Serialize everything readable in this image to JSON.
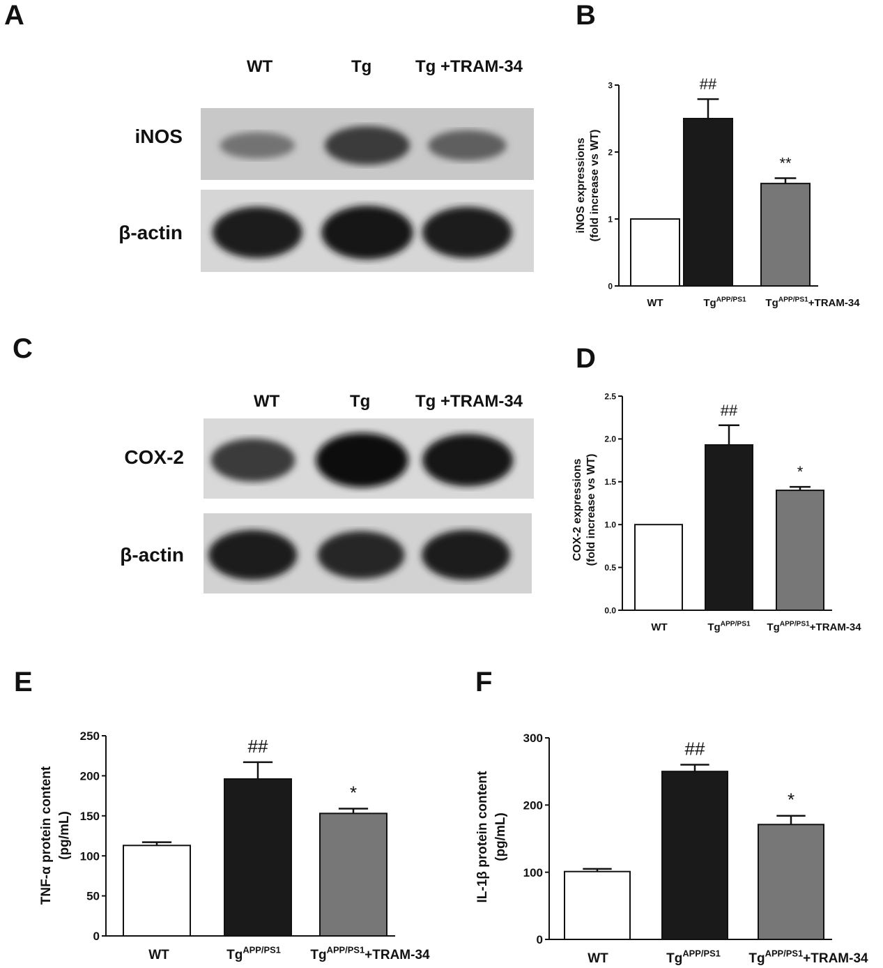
{
  "panels": {
    "A": "A",
    "B": "B",
    "C": "C",
    "D": "D",
    "E": "E",
    "F": "F"
  },
  "blots": [
    {
      "id": "A",
      "lanes": [
        "WT",
        "Tg",
        "Tg +TRAM-34"
      ],
      "rows": [
        {
          "label": "iNOS",
          "intensity": [
            0.45,
            0.75,
            0.55
          ],
          "bg": "#c8c8c8"
        },
        {
          "label": "β-actin",
          "intensity": [
            0.9,
            0.95,
            0.9
          ],
          "bg": "#d6d6d6"
        }
      ]
    },
    {
      "id": "C",
      "lanes": [
        "WT",
        "Tg",
        "Tg +TRAM-34"
      ],
      "rows": [
        {
          "label": "COX-2",
          "intensity": [
            0.75,
            1.0,
            0.95
          ],
          "bg": "#d9d9d9"
        },
        {
          "label": "β-actin",
          "intensity": [
            0.9,
            0.85,
            0.9
          ],
          "bg": "#d2d2d2"
        }
      ]
    }
  ],
  "colors": {
    "wt": "#ffffff",
    "tg": "#1a1a1a",
    "tram": "#777777"
  },
  "chart_data": [
    {
      "id": "B",
      "type": "bar",
      "categories": [
        {
          "base": "WT",
          "sup": "",
          "suffix": ""
        },
        {
          "base": "Tg",
          "sup": "APP/PS1",
          "suffix": ""
        },
        {
          "base": "Tg",
          "sup": "APP/PS1",
          "suffix": "+TRAM-34"
        }
      ],
      "values": [
        1.0,
        2.5,
        1.53
      ],
      "errors": [
        0,
        0.29,
        0.08
      ],
      "annotations": [
        "",
        "##",
        "**"
      ],
      "ylabel": [
        "iNOS expressions",
        "(fold increase vs WT)"
      ],
      "ylim": [
        0,
        3
      ],
      "yticks": [
        "0",
        "1",
        "2",
        "3"
      ],
      "ytick_values": [
        0,
        1,
        2,
        3
      ]
    },
    {
      "id": "D",
      "type": "bar",
      "categories": [
        {
          "base": "WT",
          "sup": "",
          "suffix": ""
        },
        {
          "base": "Tg",
          "sup": "APP/PS1",
          "suffix": ""
        },
        {
          "base": "Tg",
          "sup": "APP/PS1",
          "suffix": "+TRAM-34"
        }
      ],
      "values": [
        1.0,
        1.93,
        1.4
      ],
      "errors": [
        0,
        0.23,
        0.04
      ],
      "annotations": [
        "",
        "##",
        "*"
      ],
      "ylabel": [
        "COX-2 expressions",
        "(fold increase vs WT)"
      ],
      "ylim": [
        0,
        2.5
      ],
      "yticks": [
        "0.0",
        "0.5",
        "1.0",
        "1.5",
        "2.0",
        "2.5"
      ],
      "ytick_values": [
        0,
        0.5,
        1,
        1.5,
        2,
        2.5
      ]
    },
    {
      "id": "E",
      "type": "bar",
      "categories": [
        {
          "base": "WT",
          "sup": "",
          "suffix": ""
        },
        {
          "base": "Tg",
          "sup": "APP/PS1",
          "suffix": ""
        },
        {
          "base": "Tg",
          "sup": "APP/PS1",
          "suffix": "+TRAM-34"
        }
      ],
      "values": [
        113,
        196,
        153
      ],
      "errors": [
        4,
        21,
        6
      ],
      "annotations": [
        "",
        "##",
        "*"
      ],
      "ylabel": [
        "TNF-α  protein content",
        "(pg/mL)"
      ],
      "ylim": [
        0,
        250
      ],
      "yticks": [
        "0",
        "50",
        "100",
        "150",
        "200",
        "250"
      ],
      "ytick_values": [
        0,
        50,
        100,
        150,
        200,
        250
      ]
    },
    {
      "id": "F",
      "type": "bar",
      "categories": [
        {
          "base": "WT",
          "sup": "",
          "suffix": ""
        },
        {
          "base": "Tg",
          "sup": "APP/PS1",
          "suffix": ""
        },
        {
          "base": "Tg",
          "sup": "APP/PS1",
          "suffix": "+TRAM-34"
        }
      ],
      "values": [
        101,
        250,
        171
      ],
      "errors": [
        4,
        10,
        13
      ],
      "annotations": [
        "",
        "##",
        "*"
      ],
      "ylabel": [
        "IL-1β  protein content",
        "(pg/mL)"
      ],
      "ylim": [
        0,
        300
      ],
      "yticks": [
        "0",
        "100",
        "200",
        "300"
      ],
      "ytick_values": [
        0,
        100,
        200,
        300
      ]
    }
  ]
}
